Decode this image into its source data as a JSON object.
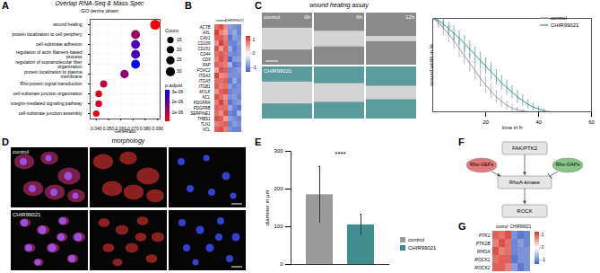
{
  "chart_data": [
    {
      "panel": "A",
      "type": "dot",
      "title": "Overlap RNA-Seq & Mass Spec",
      "subtitle": "GO terms down",
      "categories": [
        "wound healing",
        "protein localization to cell periphery",
        "cell-substrate adhesion",
        "regulation of actin filament-based process",
        "regulation of supramolecular fiber organization",
        "protein localization to plasma membrane",
        "Rho protein signal transduction",
        "cell-substrate junction organization",
        "integrin-mediated signaling pathway",
        "cell-substrate junction assembly"
      ],
      "values": [
        0.088,
        0.072,
        0.072,
        0.072,
        0.072,
        0.063,
        0.046,
        0.042,
        0.042,
        0.04
      ],
      "count": [
        35,
        28,
        28,
        28,
        28,
        25,
        18,
        16,
        16,
        15
      ],
      "p_adjust": [
        2e-07,
        1.4e-06,
        2.3e-06,
        2.4e-06,
        3.2e-06,
        1.5e-06,
        9e-07,
        5e-07,
        6e-07,
        4e-07
      ],
      "xlabel": "GeneRatio",
      "xlim": [
        0.035,
        0.092
      ],
      "xticks": [
        0.04,
        0.05,
        0.06,
        0.07,
        0.08,
        0.09
      ],
      "grid": true,
      "count_legend": {
        "label": "Count",
        "ticks": [
          15,
          20,
          25,
          30
        ]
      },
      "color_legend": {
        "label": "p.adjust",
        "lim": [
          2e-07,
          3.2e-06
        ],
        "ticks": [
          {
            "value": 1e-06,
            "label": "1e-06"
          },
          {
            "value": 2e-06,
            "label": "2e-06"
          },
          {
            "value": 3e-06,
            "label": "3e-06"
          }
        ]
      }
    },
    {
      "panel": "B",
      "type": "heatmap",
      "groups": [
        "control",
        "CHIR99021"
      ],
      "categories": [
        "ACTB",
        "AXL",
        "CAV1",
        "CD109",
        "CD151",
        "CD44",
        "CD9",
        "FAP",
        "FOXC2",
        "ITGA3",
        "ITGA5",
        "ITGB1",
        "MYLK",
        "NCL",
        "PDGFRA",
        "PDGFRB",
        "SERPINE1",
        "THBS1",
        "TLN1",
        "VCL"
      ],
      "cells": [
        [
          0.9,
          1.1,
          0.7,
          -0.8,
          -0.9,
          -1.0
        ],
        [
          1.2,
          0.8,
          0.6,
          -0.9,
          -0.7,
          -1.0
        ],
        [
          1.0,
          1.0,
          0.8,
          -1.1,
          -0.8,
          -0.9
        ],
        [
          0.7,
          1.2,
          0.9,
          -1.0,
          -1.0,
          -0.8
        ],
        [
          1.1,
          0.6,
          1.0,
          -0.7,
          -1.1,
          -0.9
        ],
        [
          0.9,
          1.0,
          0.9,
          -0.9,
          -1.0,
          -0.9
        ],
        [
          0.8,
          1.1,
          0.9,
          -1.2,
          -0.8,
          -0.8
        ],
        [
          1.0,
          0.9,
          0.8,
          -0.6,
          -1.1,
          -1.0
        ],
        [
          0.6,
          1.1,
          1.0,
          -1.0,
          -0.9,
          -0.8
        ],
        [
          1.2,
          0.7,
          0.8,
          -0.9,
          -0.9,
          -0.9
        ],
        [
          0.9,
          0.9,
          1.0,
          -1.1,
          -0.7,
          -1.0
        ],
        [
          1.0,
          0.8,
          0.9,
          -0.8,
          -1.0,
          -0.9
        ],
        [
          0.7,
          1.0,
          1.1,
          -1.0,
          -0.9,
          -0.9
        ],
        [
          1.1,
          0.9,
          0.7,
          -0.9,
          -0.8,
          -1.0
        ],
        [
          0.8,
          1.2,
          0.8,
          -1.1,
          -0.9,
          -0.8
        ],
        [
          1.0,
          0.9,
          0.9,
          -0.7,
          -1.0,
          -1.1
        ],
        [
          0.9,
          0.7,
          1.1,
          -1.0,
          -1.1,
          -0.6
        ],
        [
          1.1,
          1.0,
          0.6,
          -0.8,
          -0.9,
          -1.0
        ],
        [
          0.8,
          0.9,
          1.0,
          -1.0,
          -0.8,
          -0.9
        ],
        [
          1.0,
          1.1,
          0.8,
          -0.9,
          -1.0,
          -1.0
        ]
      ],
      "colorbar": {
        "lim": [
          -1.3,
          1.3
        ],
        "ticks": [
          1,
          0,
          -1
        ]
      }
    },
    {
      "panel": "C",
      "type": "line",
      "images": {
        "title": "wound healing assay",
        "columns": [
          "0h",
          "6h",
          "12h"
        ],
        "rows": [
          "control",
          "CHIR99021"
        ]
      },
      "x": [
        0,
        2,
        4,
        6,
        8,
        10,
        12,
        14,
        16,
        18,
        20,
        22,
        24,
        26,
        28,
        30,
        32,
        34,
        36,
        38,
        40,
        42,
        44,
        46
      ],
      "series": [
        {
          "name": "control",
          "color": "#9a9a9a",
          "values": [
            100,
            96,
            90,
            83,
            76,
            68,
            60,
            52,
            44,
            36,
            29,
            22,
            16,
            11,
            7,
            4,
            2,
            1,
            0,
            0,
            0,
            0,
            0,
            0
          ],
          "error": [
            0,
            6,
            8,
            9,
            9,
            10,
            10,
            10,
            10,
            9,
            9,
            8,
            7,
            6,
            5,
            4,
            3,
            2,
            1,
            0,
            0,
            0,
            0,
            0
          ]
        },
        {
          "name": "CHIR99021",
          "color": "#3f8f8e",
          "values": [
            100,
            98,
            94,
            89,
            84,
            79,
            73,
            67,
            61,
            55,
            49,
            43,
            37,
            31,
            26,
            21,
            16,
            12,
            8,
            5,
            3,
            1,
            0,
            0
          ],
          "error": [
            0,
            4,
            6,
            7,
            8,
            8,
            9,
            9,
            9,
            9,
            9,
            9,
            8,
            8,
            8,
            7,
            7,
            6,
            5,
            4,
            3,
            2,
            1,
            0
          ]
        }
      ],
      "xlabel": "time in h",
      "ylabel": "wound width in %",
      "xlim": [
        0,
        60
      ],
      "xticks": [
        20,
        40,
        60
      ],
      "ylim": [
        0,
        100
      ],
      "tick_labels": "x",
      "legend": "top-right"
    },
    {
      "panel": "D",
      "type": "image",
      "title": "morphology",
      "rows": [
        "control",
        "CHIR99021"
      ]
    },
    {
      "panel": "E",
      "type": "bar",
      "categories": [
        "control",
        "CHIR99021"
      ],
      "values": [
        185,
        105
      ],
      "errors": [
        75,
        28
      ],
      "colors": [
        "#9a9a9a",
        "#3f8f8e"
      ],
      "ylabel": "diameter in µm",
      "ylim": [
        0,
        300
      ],
      "yticks": [
        0,
        100,
        200,
        300
      ],
      "annotation": "****",
      "tick_labels": "y",
      "legend": "bottom-right"
    },
    {
      "panel": "F",
      "type": "diagram",
      "nodes": [
        "FAK/PTK2",
        "Rho-GEFs",
        "Rho-GAPs",
        "RhoA-kinase",
        "ROCK"
      ]
    },
    {
      "panel": "G",
      "type": "heatmap",
      "groups": [
        "control",
        "CHIR99021"
      ],
      "categories": [
        "PTK2",
        "PTK2B",
        "RHOA",
        "ROCK1",
        "ROCK2"
      ],
      "cells": [
        [
          1.0,
          0.9,
          1.1,
          -0.9,
          -1.1,
          -1.0
        ],
        [
          0.8,
          1.1,
          0.9,
          -1.0,
          -0.8,
          -1.0
        ],
        [
          1.1,
          0.8,
          0.9,
          -1.0,
          -0.9,
          -0.9
        ],
        [
          0.9,
          1.0,
          1.0,
          -1.1,
          -0.9,
          -0.9
        ],
        [
          1.0,
          1.0,
          0.8,
          -0.8,
          -1.1,
          -0.9
        ]
      ],
      "colorbar": {
        "lim": [
          -1.3,
          1.3
        ],
        "ticks": [
          1,
          0,
          -1
        ]
      }
    }
  ]
}
